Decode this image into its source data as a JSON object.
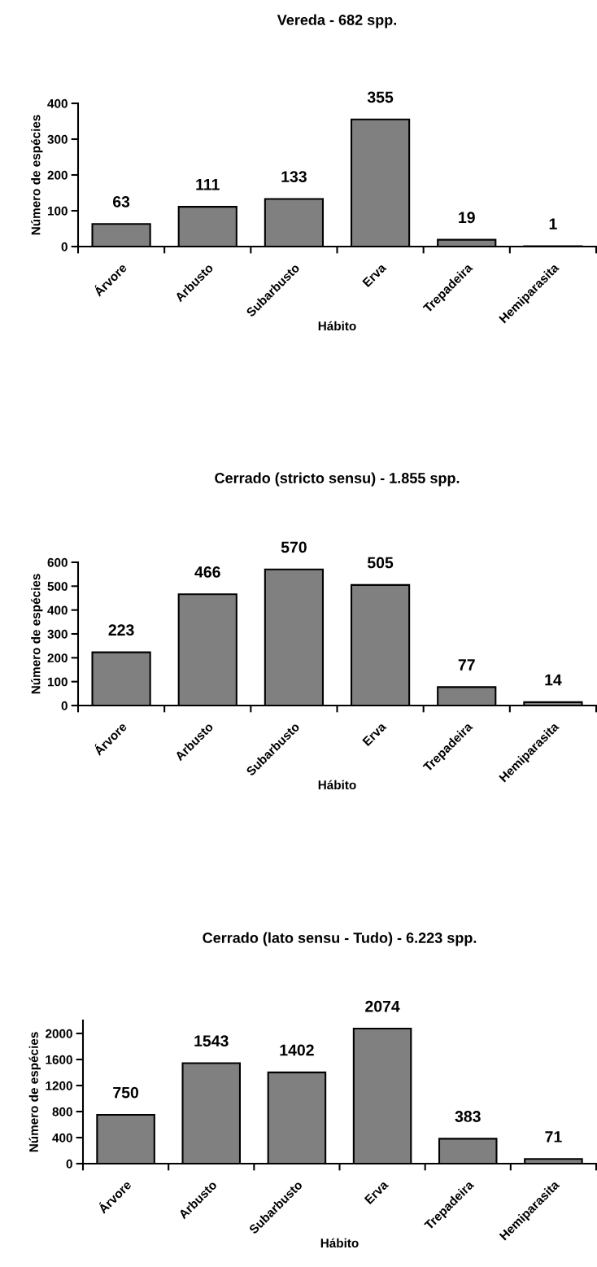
{
  "chart_data": [
    {
      "type": "bar",
      "title": "Vereda - 682 spp.",
      "xlabel": "Hábito",
      "ylabel": "Número de espécies",
      "categories": [
        "Árvore",
        "Arbusto",
        "Subarbusto",
        "Erva",
        "Trepadeira",
        "Hemiparasita"
      ],
      "values": [
        63,
        111,
        133,
        355,
        19,
        1
      ],
      "color": "#808080",
      "ylim": [
        0,
        400
      ],
      "yticks": [
        0,
        100,
        200,
        300,
        400
      ],
      "data_labels": true,
      "grid": false,
      "legend": false
    },
    {
      "type": "bar",
      "title": "Cerrado (stricto sensu) - 1.855 spp.",
      "xlabel": "Hábito",
      "ylabel": "Número de espécies",
      "categories": [
        "Árvore",
        "Arbusto",
        "Subarbusto",
        "Erva",
        "Trepadeira",
        "Hemiparasita"
      ],
      "values": [
        223,
        466,
        570,
        505,
        77,
        14
      ],
      "color": "#808080",
      "ylim": [
        0,
        600
      ],
      "yticks": [
        0,
        100,
        200,
        300,
        400,
        500,
        600
      ],
      "data_labels": true,
      "grid": false,
      "legend": false
    },
    {
      "type": "bar",
      "title": "Cerrado (lato sensu - Tudo) - 6.223 spp.",
      "xlabel": "Hábito",
      "ylabel": "Número de espécies",
      "categories": [
        "Árvore",
        "Arbusto",
        "Subarbusto",
        "Erva",
        "Trepadeira",
        "Hemiparasita"
      ],
      "values": [
        750,
        1543,
        1402,
        2074,
        383,
        71
      ],
      "color": "#808080",
      "ylim": [
        0,
        2200
      ],
      "yticks": [
        0,
        400,
        800,
        1200,
        1600,
        2000
      ],
      "data_labels": true,
      "grid": false,
      "legend": false
    }
  ]
}
